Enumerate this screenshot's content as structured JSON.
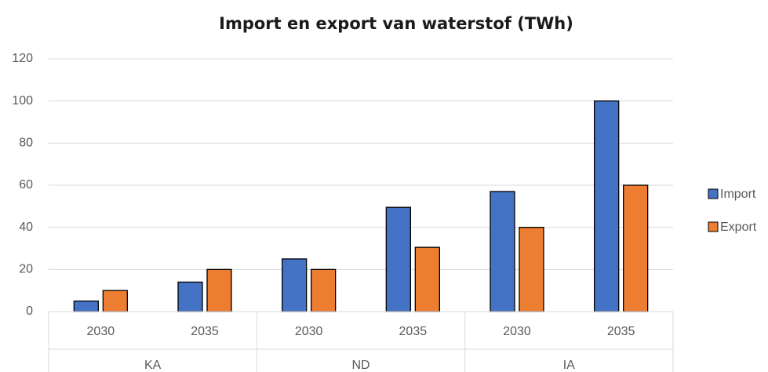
{
  "chart_data": {
    "type": "bar",
    "title": "Import en export van waterstof (TWh)",
    "categories": [
      "2030",
      "2035",
      "2030",
      "2035",
      "2030",
      "2035"
    ],
    "category_groups": [
      "KA",
      "ND",
      "IA"
    ],
    "series": [
      {
        "name": "Import",
        "color": "#4472c4",
        "values": [
          5,
          14,
          25,
          49.5,
          57,
          100
        ]
      },
      {
        "name": "Export",
        "color": "#ed7d31",
        "values": [
          10,
          20,
          20,
          30.5,
          40,
          60
        ]
      }
    ],
    "ylim": [
      0,
      120
    ],
    "yticks": [
      0,
      20,
      40,
      60,
      80,
      100,
      120
    ],
    "grid": true,
    "legend": "right"
  }
}
